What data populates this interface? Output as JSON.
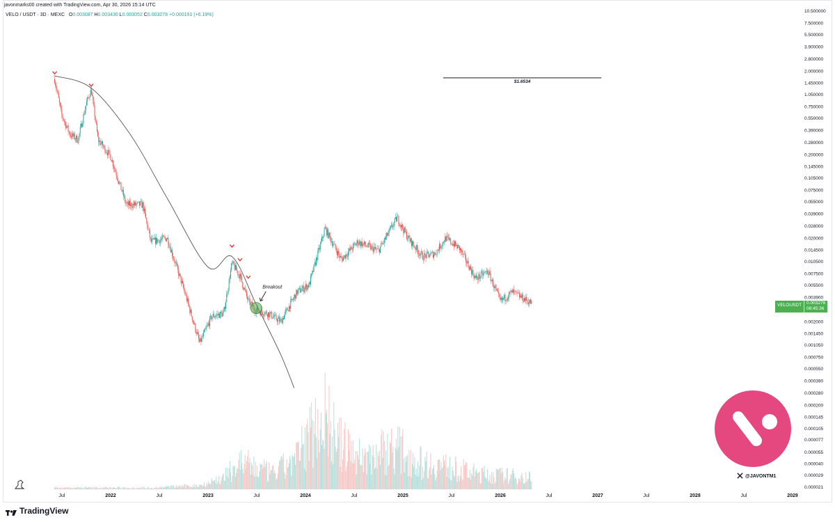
{
  "header": {
    "creator": "javonmarks00 created with TradingView.com, Apr 30, 2026 15:14 UTC",
    "symbol": "VELO / USDT · 3D · MEXC",
    "open_label": "O",
    "open": "0.003087",
    "high_label": "H",
    "high": "0.003430",
    "low_label": "L",
    "low": "0.003052",
    "close_label": "C",
    "close": "0.003278",
    "change": "+0.000191 (+6.19%)"
  },
  "price_badge": {
    "symbol": "VELOUSDT",
    "price": "0.003278",
    "countdown": "08:45:36"
  },
  "watermark": {
    "handle": "@JAVONTM1"
  },
  "footer": {
    "brand": "TradingView"
  },
  "annotations": {
    "target_label": "$1.6534",
    "breakout_label": "Breakout"
  },
  "colors": {
    "up": "#26a69a",
    "down": "#ef5350",
    "accent_green": "#4caf50",
    "logo_pink": "#e5477f",
    "marker_red": "#e53935"
  },
  "icons": {
    "exchange_logo": "velo-logo-icon",
    "x_logo": "x-logo-icon",
    "tv_logo": "tradingview-logo-icon"
  },
  "chart_data": {
    "type": "candlestick",
    "scale": "log",
    "x_tick_labels": [
      "Jul",
      "2022",
      "Jul",
      "2023",
      "Jul",
      "2024",
      "Jul",
      "2025",
      "Jul",
      "2026",
      "Jul",
      "2027",
      "Jul",
      "2028",
      "Jul",
      "2029"
    ],
    "y_tick_labels": [
      "10.500000",
      "7.500000",
      "5.500000",
      "3.900000",
      "2.800000",
      "2.000000",
      "1.450000",
      "1.050000",
      "0.750000",
      "0.550000",
      "0.390000",
      "0.280000",
      "0.200000",
      "0.145000",
      "0.105000",
      "0.075000",
      "0.055000",
      "0.039000",
      "0.028000",
      "0.020000",
      "0.014500",
      "0.010500",
      "0.007500",
      "0.005500",
      "0.003900",
      "0.002000",
      "0.001450",
      "0.001050",
      "0.000750",
      "0.000550",
      "0.000390",
      "0.000280",
      "0.000200",
      "0.000145",
      "0.000105",
      "0.000077",
      "0.000055",
      "0.000040",
      "0.000029",
      "0.000021"
    ],
    "price_path": [
      {
        "date": "2021-06-05",
        "price": 1.6
      },
      {
        "date": "2021-07-01",
        "price": 0.6
      },
      {
        "date": "2021-08-01",
        "price": 0.35
      },
      {
        "date": "2021-09-01",
        "price": 0.3
      },
      {
        "date": "2021-10-01",
        "price": 0.8
      },
      {
        "date": "2021-10-20",
        "price": 1.2
      },
      {
        "date": "2021-11-15",
        "price": 0.3
      },
      {
        "date": "2022-01-01",
        "price": 0.19
      },
      {
        "date": "2022-03-01",
        "price": 0.05
      },
      {
        "date": "2022-05-01",
        "price": 0.05
      },
      {
        "date": "2022-06-01",
        "price": 0.018
      },
      {
        "date": "2022-08-01",
        "price": 0.02
      },
      {
        "date": "2022-10-01",
        "price": 0.005
      },
      {
        "date": "2022-12-01",
        "price": 0.0011
      },
      {
        "date": "2023-01-15",
        "price": 0.0023
      },
      {
        "date": "2023-03-01",
        "price": 0.0025
      },
      {
        "date": "2023-04-01",
        "price": 0.01
      },
      {
        "date": "2023-05-01",
        "price": 0.007
      },
      {
        "date": "2023-06-01",
        "price": 0.0035
      },
      {
        "date": "2023-07-01",
        "price": 0.0027
      },
      {
        "date": "2023-08-15",
        "price": 0.0025
      },
      {
        "date": "2023-10-01",
        "price": 0.002
      },
      {
        "date": "2023-12-01",
        "price": 0.0045
      },
      {
        "date": "2024-01-15",
        "price": 0.0055
      },
      {
        "date": "2024-03-15",
        "price": 0.026
      },
      {
        "date": "2024-05-15",
        "price": 0.011
      },
      {
        "date": "2024-07-15",
        "price": 0.018
      },
      {
        "date": "2024-10-01",
        "price": 0.014
      },
      {
        "date": "2024-12-10",
        "price": 0.035
      },
      {
        "date": "2025-01-20",
        "price": 0.02
      },
      {
        "date": "2025-03-15",
        "price": 0.012
      },
      {
        "date": "2025-05-01",
        "price": 0.013
      },
      {
        "date": "2025-06-10",
        "price": 0.02
      },
      {
        "date": "2025-08-01",
        "price": 0.015
      },
      {
        "date": "2025-10-01",
        "price": 0.0065
      },
      {
        "date": "2025-11-15",
        "price": 0.008
      },
      {
        "date": "2026-01-01",
        "price": 0.0035
      },
      {
        "date": "2026-02-15",
        "price": 0.0045
      },
      {
        "date": "2026-04-30",
        "price": 0.0033
      }
    ],
    "resistance_curve": [
      {
        "date": "2021-06-05",
        "price": 1.75
      },
      {
        "date": "2021-10-20",
        "price": 1.25
      },
      {
        "date": "2022-03-15",
        "price": 0.35
      },
      {
        "date": "2022-08-01",
        "price": 0.06
      },
      {
        "date": "2023-01-01",
        "price": 0.009
      },
      {
        "date": "2023-04-01",
        "price": 0.012
      },
      {
        "date": "2023-07-01",
        "price": 0.0032
      },
      {
        "date": "2023-10-01",
        "price": 0.0008
      },
      {
        "date": "2023-11-20",
        "price": 0.00032
      }
    ],
    "target_line": {
      "price": 1.6534,
      "from": "2025-06-01",
      "to": "2027-01-15"
    },
    "top_markers": [
      {
        "date": "2021-06-05",
        "price": 1.9
      },
      {
        "date": "2021-10-20",
        "price": 1.35
      },
      {
        "date": "2023-04-01",
        "price": 0.016
      },
      {
        "date": "2023-05-01",
        "price": 0.011
      },
      {
        "date": "2023-06-01",
        "price": 0.0068
      }
    ],
    "breakout_point": {
      "date": "2023-07-01",
      "price": 0.0029
    },
    "volume_profile": [
      {
        "date": "2021-06-01",
        "v": 0.02
      },
      {
        "date": "2022-06-01",
        "v": 0.02
      },
      {
        "date": "2022-12-01",
        "v": 0.05
      },
      {
        "date": "2023-03-01",
        "v": 0.15
      },
      {
        "date": "2023-05-01",
        "v": 0.35
      },
      {
        "date": "2023-09-01",
        "v": 0.2
      },
      {
        "date": "2023-12-01",
        "v": 0.4
      },
      {
        "date": "2024-02-01",
        "v": 0.8
      },
      {
        "date": "2024-03-15",
        "v": 1.0
      },
      {
        "date": "2024-05-01",
        "v": 0.6
      },
      {
        "date": "2024-08-01",
        "v": 0.4
      },
      {
        "date": "2024-12-01",
        "v": 0.55
      },
      {
        "date": "2025-03-01",
        "v": 0.35
      },
      {
        "date": "2025-06-01",
        "v": 0.3
      },
      {
        "date": "2025-10-01",
        "v": 0.2
      },
      {
        "date": "2026-04-30",
        "v": 0.15
      }
    ],
    "grid": false,
    "legend": "none"
  }
}
